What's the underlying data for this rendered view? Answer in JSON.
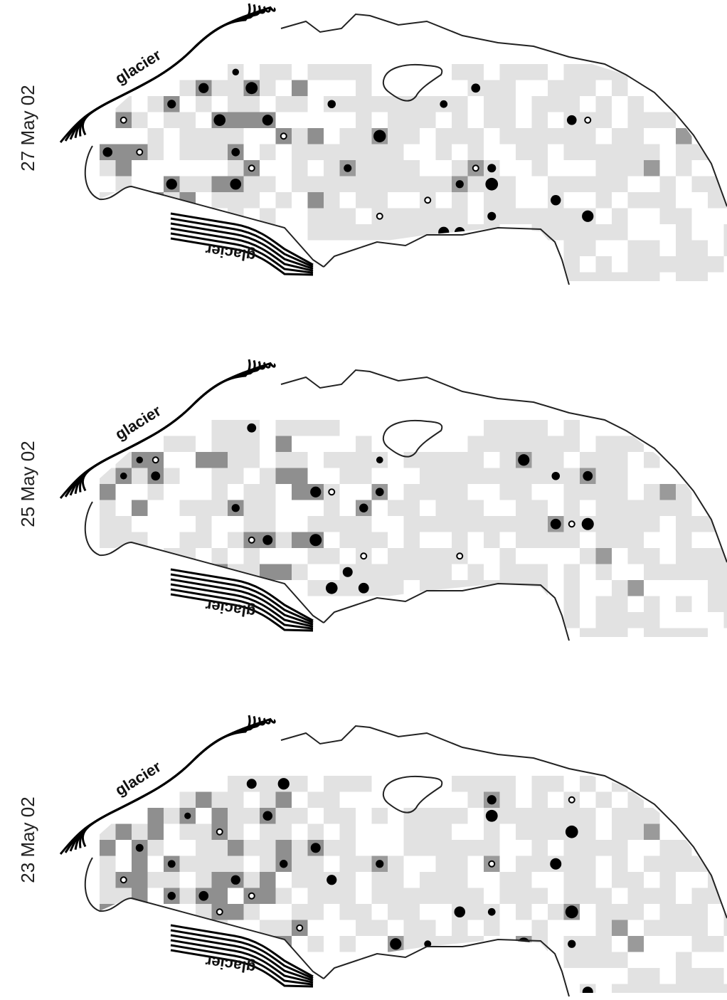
{
  "panels": [
    {
      "date": "27 May 02",
      "glacier_labels": [
        "glacier",
        "glacier"
      ]
    },
    {
      "date": "25 May 02",
      "glacier_labels": [
        "glacier",
        "glacier"
      ]
    },
    {
      "date": "23 May 02",
      "glacier_labels": [
        "glacier",
        "glacier"
      ]
    }
  ]
}
